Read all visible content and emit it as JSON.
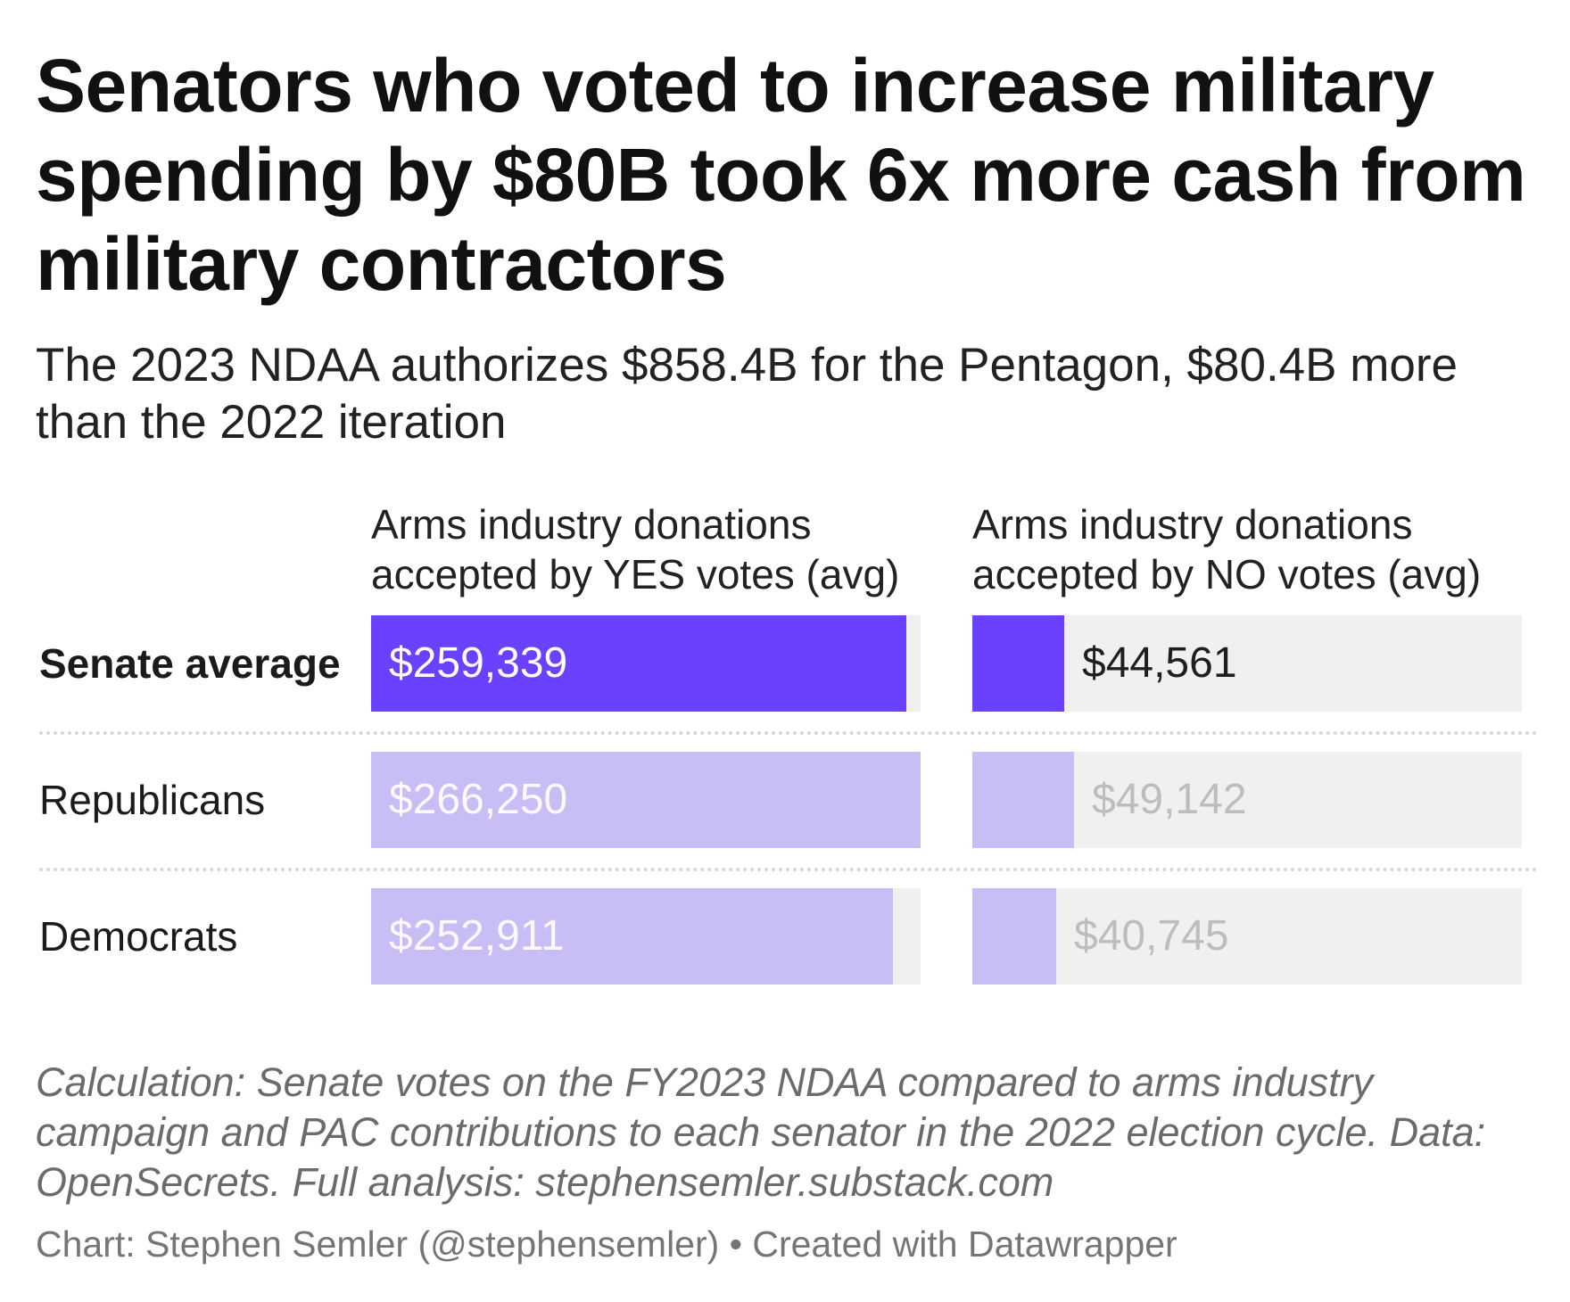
{
  "title": "Senators who voted to increase military spending by $80B took 6x more cash from military contractors",
  "subtitle": "The 2023 NDAA authorizes $858.4B for the Pentagon, $80.4B more than the 2022 iteration",
  "notes": "Calculation: Senate votes on the FY2023 NDAA compared to arms industry campaign and PAC contributions to each senator in the 2022 election cycle. Data: OpenSecrets. Full analysis: stephensemler.substack.com",
  "credit": "Chart: Stephen Semler (@stephensemler) • Created with Datawrapper",
  "colors": {
    "strong": "#6b40ff",
    "light": "#c8bdf5",
    "track": "#f0f0f0"
  },
  "chart_data": {
    "type": "bar",
    "title": "Senators who voted to increase military spending by $80B took 6x more cash from military contractors",
    "categories": [
      "Senate average",
      "Republicans",
      "Democrats"
    ],
    "series": [
      {
        "name": "Arms industry donations accepted by YES votes (avg)",
        "values": [
          259339,
          266250,
          252911
        ],
        "labels": [
          "$259,339",
          "$266,250",
          "$252,911"
        ]
      },
      {
        "name": "Arms industry donations accepted by NO votes (avg)",
        "values": [
          44561,
          49142,
          40745
        ],
        "labels": [
          "$44,561",
          "$49,142",
          "$40,745"
        ]
      }
    ],
    "xlim": [
      0,
      266250
    ],
    "xlabel": "",
    "ylabel": ""
  }
}
